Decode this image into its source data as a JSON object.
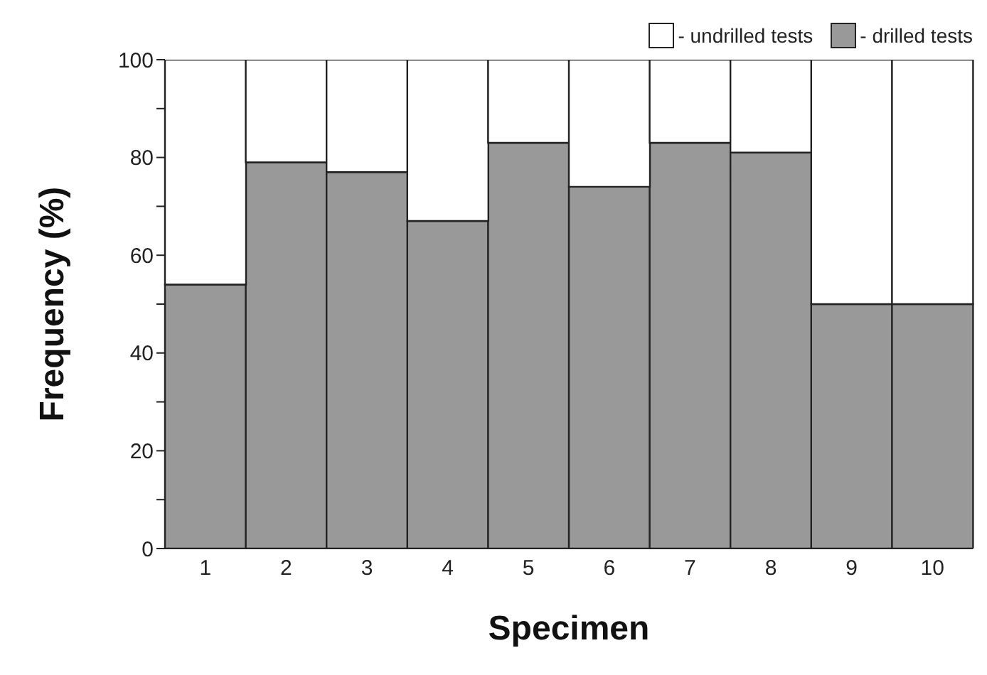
{
  "chart_data": {
    "type": "bar",
    "stacked": true,
    "xlabel": "Specimen",
    "ylabel": "Frequency (%)",
    "categories": [
      "1",
      "2",
      "3",
      "4",
      "5",
      "6",
      "7",
      "8",
      "9",
      "10"
    ],
    "series": [
      {
        "name": "- drilled tests",
        "color": "#999999",
        "values": [
          54,
          79,
          77,
          67,
          83,
          74,
          83,
          81,
          50,
          50
        ]
      },
      {
        "name": "- undrilled tests",
        "color": "#ffffff",
        "values": [
          46,
          21,
          23,
          33,
          17,
          26,
          17,
          19,
          50,
          50
        ]
      }
    ],
    "ylim": [
      0,
      100
    ],
    "yticks": [
      0,
      {
        "value": 10,
        "label": null
      },
      20,
      {
        "value": 30,
        "label": null
      },
      40,
      {
        "value": 50,
        "label": null
      },
      60,
      {
        "value": 70,
        "label": null
      },
      80,
      {
        "value": 90,
        "label": null
      },
      100
    ],
    "grid": false,
    "legend": "top right"
  }
}
